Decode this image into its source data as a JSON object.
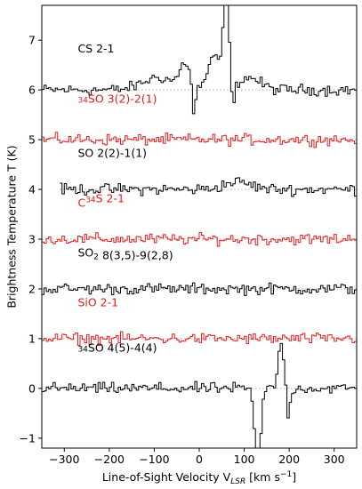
{
  "chart_data": {
    "type": "line",
    "title": "",
    "xlabel": "Line-of-Sight Velocity V",
    "xlabel_sub": "LSR",
    "xlabel_unit": " [km s",
    "xlabel_unit_sup": "−1",
    "xlabel_unit_end": "]",
    "ylabel": "Brightness Temperature T (K)",
    "xlim": [
      -350,
      350
    ],
    "ylim": [
      -1.2,
      7.7
    ],
    "xticks": [
      -300,
      -200,
      -100,
      0,
      100,
      200,
      300
    ],
    "xtick_labels": [
      "−300",
      "−200",
      "−100",
      "0",
      "100",
      "200",
      "300"
    ],
    "yticks": [
      -1,
      0,
      1,
      2,
      3,
      4,
      5,
      6,
      7
    ],
    "ytick_labels": [
      "−1",
      "0",
      "1",
      "2",
      "3",
      "4",
      "5",
      "6",
      "7"
    ],
    "step_width": 5,
    "series": [
      {
        "label_parts": [
          {
            "t": "CS 2-1"
          }
        ],
        "color": "#000000",
        "offset": 6,
        "label_x": -270,
        "label_y": 6.75,
        "x_start": -350,
        "features": [
          {
            "c": -90,
            "w": 35,
            "a": 0.25
          },
          {
            "c": -30,
            "w": 12,
            "a": 0.5
          },
          {
            "c": 35,
            "w": 15,
            "a": 0.65
          },
          {
            "c": 60,
            "w": 6,
            "a": 1.9
          },
          {
            "c": -12,
            "w": 4,
            "a": -0.65
          },
          {
            "c": 75,
            "w": 4,
            "a": -0.5
          },
          {
            "c": 110,
            "w": 25,
            "a": 0.25
          }
        ]
      },
      {
        "label_parts": [
          {
            "t": "34",
            "sup": true
          },
          {
            "t": "SO 3(2)-2(1)"
          }
        ],
        "color": "#e41a1c",
        "offset": 5,
        "label_x": -270,
        "label_y": 5.65,
        "x_start": -350,
        "features": []
      },
      {
        "label_parts": [
          {
            "t": "SO 2(2)-1(1)"
          }
        ],
        "color": "#000000",
        "offset": 4,
        "label_x": -270,
        "label_y": 4.65,
        "x_start": -310,
        "features": [
          {
            "c": 85,
            "w": 30,
            "a": 0.15
          }
        ]
      },
      {
        "label_parts": [
          {
            "t": "C"
          },
          {
            "t": "34",
            "sup": true
          },
          {
            "t": "S 2-1"
          }
        ],
        "color": "#e41a1c",
        "offset": 3,
        "label_x": -270,
        "label_y": 3.65,
        "x_start": -350,
        "features": []
      },
      {
        "label_parts": [
          {
            "t": "SO"
          },
          {
            "t": "2",
            "sub": true
          },
          {
            "t": " 8(3,5)-9(2,8)"
          }
        ],
        "color": "#000000",
        "offset": 2,
        "label_x": -270,
        "label_y": 2.65,
        "x_start": -350,
        "features": []
      },
      {
        "label_parts": [
          {
            "t": "SiO 2-1"
          }
        ],
        "color": "#e41a1c",
        "offset": 1,
        "label_x": -270,
        "label_y": 1.65,
        "x_start": -350,
        "features": []
      },
      {
        "label_parts": [
          {
            "t": "34",
            "sup": true
          },
          {
            "t": "SO 4(5)-4(4)"
          }
        ],
        "color": "#000000",
        "offset": 0,
        "label_x": -270,
        "label_y": 0.65,
        "x_start": -350,
        "features": [
          {
            "c": 130,
            "w": 7,
            "a": -1.45
          },
          {
            "c": 182,
            "w": 6,
            "a": 0.95
          },
          {
            "c": 198,
            "w": 4,
            "a": -0.55
          }
        ]
      }
    ]
  }
}
